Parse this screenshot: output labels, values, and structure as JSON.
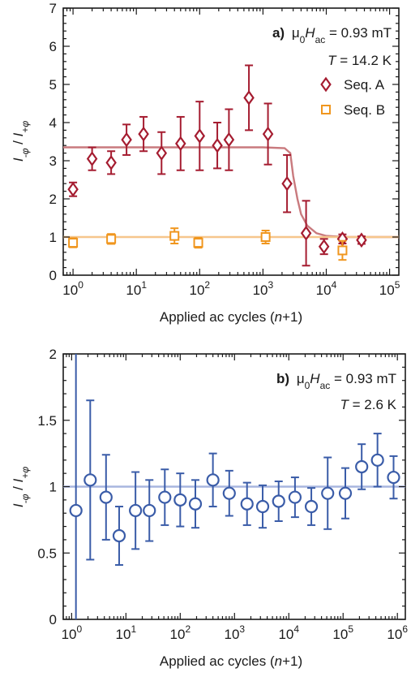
{
  "chart_data": [
    {
      "type": "scatter",
      "panel_label": "a)",
      "field_prefix": "μ",
      "field_sub0": "0",
      "field_H": "H",
      "field_sub": "ac",
      "field_value": " = 0.93 mT",
      "temp_T": "T",
      "temp_value": " = 14.2 K",
      "xlabel_prefix": "Applied ac cycles (",
      "xlabel_n": "n",
      "xlabel_suffix": "+1)",
      "ylabel_I": "I",
      "ylabel_sub_minus": "-φ",
      "ylabel_sep": " / ",
      "ylabel_sub_plus": "+φ",
      "xscale": "log",
      "xlim": [
        0.7,
        140000
      ],
      "ylim": [
        0,
        7
      ],
      "xticks": [
        1,
        10,
        100,
        1000,
        10000,
        100000
      ],
      "xtick_exponents": [
        "0",
        "1",
        "2",
        "3",
        "4",
        "5"
      ],
      "yticks": [
        0,
        1,
        2,
        3,
        4,
        5,
        6,
        7
      ],
      "ytick_labels": [
        "0",
        "1",
        "2",
        "3",
        "4",
        "5",
        "6",
        "7"
      ],
      "legend_position": "top-right",
      "series": [
        {
          "name": "Seq. A",
          "marker": "diamond",
          "color": "#a51c30",
          "points": [
            {
              "x": 1,
              "y": 2.25,
              "err": 0.18
            },
            {
              "x": 2,
              "y": 3.05,
              "err": 0.3
            },
            {
              "x": 4,
              "y": 2.95,
              "err": 0.3
            },
            {
              "x": 7,
              "y": 3.55,
              "err": 0.4
            },
            {
              "x": 13,
              "y": 3.7,
              "err": 0.45
            },
            {
              "x": 25,
              "y": 3.2,
              "err": 0.55
            },
            {
              "x": 50,
              "y": 3.45,
              "err": 0.7
            },
            {
              "x": 100,
              "y": 3.65,
              "err": 0.9
            },
            {
              "x": 190,
              "y": 3.4,
              "err": 0.6
            },
            {
              "x": 290,
              "y": 3.55,
              "err": 0.8
            },
            {
              "x": 600,
              "y": 4.65,
              "err": 0.85
            },
            {
              "x": 1200,
              "y": 3.7,
              "err": 0.8
            },
            {
              "x": 2400,
              "y": 2.4,
              "err": 0.75
            },
            {
              "x": 4800,
              "y": 1.1,
              "err": 0.85
            },
            {
              "x": 9200,
              "y": 0.75,
              "err": 0.2
            },
            {
              "x": 18000,
              "y": 0.95,
              "err": 0.12
            },
            {
              "x": 36000,
              "y": 0.92,
              "err": 0.1
            }
          ],
          "fit": {
            "color": "#c97a7e",
            "points": [
              [
                0.7,
                3.35
              ],
              [
                1000,
                3.35
              ],
              [
                2200,
                3.33
              ],
              [
                2700,
                3.2
              ],
              [
                3000,
                2.6
              ],
              [
                3500,
                2.0
              ],
              [
                4000,
                1.6
              ],
              [
                5000,
                1.3
              ],
              [
                7000,
                1.1
              ],
              [
                10000,
                1.03
              ],
              [
                20000,
                1.0
              ],
              [
                140000,
                1.0
              ]
            ]
          }
        },
        {
          "name": "Seq. B",
          "marker": "square",
          "color": "#f0961e",
          "points": [
            {
              "x": 1,
              "y": 0.85,
              "err": 0.12
            },
            {
              "x": 4,
              "y": 0.95,
              "err": 0.13
            },
            {
              "x": 40,
              "y": 1.03,
              "err": 0.2
            },
            {
              "x": 95,
              "y": 0.85,
              "err": 0.13
            },
            {
              "x": 1100,
              "y": 1.0,
              "err": 0.17
            },
            {
              "x": 18000,
              "y": 0.65,
              "err": 0.25
            }
          ],
          "fit": {
            "color": "#f6c68c",
            "points": [
              [
                0.7,
                1.0
              ],
              [
                140000,
                1.0
              ]
            ]
          }
        }
      ]
    },
    {
      "type": "scatter",
      "panel_label": "b)",
      "field_prefix": "μ",
      "field_sub0": "0",
      "field_H": "H",
      "field_sub": "ac",
      "field_value": " = 0.93 mT",
      "temp_T": "T",
      "temp_value": " = 2.6 K",
      "xlabel_prefix": "Applied ac cycles (",
      "xlabel_n": "n",
      "xlabel_suffix": "+1)",
      "ylabel_I": "I",
      "ylabel_sub_minus": "-φ",
      "ylabel_sep": " / ",
      "ylabel_sub_plus": "+φ",
      "xscale": "log",
      "xlim": [
        0.7,
        1400000
      ],
      "ylim": [
        0,
        2
      ],
      "xticks": [
        1,
        10,
        100,
        1000,
        10000,
        100000,
        1000000
      ],
      "xtick_exponents": [
        "0",
        "1",
        "2",
        "3",
        "4",
        "5",
        "6"
      ],
      "yticks": [
        0,
        0.5,
        1,
        1.5,
        2
      ],
      "ytick_labels": [
        "0",
        "0.5",
        "1",
        "1.5",
        "2"
      ],
      "series": [
        {
          "marker": "circle",
          "color": "#3a5ca8",
          "points": [
            {
              "x": 1.2,
              "y": 0.82,
              "err": 1.3
            },
            {
              "x": 2.2,
              "y": 1.05,
              "err": 0.6
            },
            {
              "x": 4.3,
              "y": 0.92,
              "err": 0.32
            },
            {
              "x": 7.5,
              "y": 0.63,
              "err": 0.22
            },
            {
              "x": 15,
              "y": 0.82,
              "err": 0.29
            },
            {
              "x": 27,
              "y": 0.82,
              "err": 0.23
            },
            {
              "x": 52,
              "y": 0.92,
              "err": 0.21
            },
            {
              "x": 100,
              "y": 0.9,
              "err": 0.2
            },
            {
              "x": 190,
              "y": 0.87,
              "err": 0.18
            },
            {
              "x": 400,
              "y": 1.05,
              "err": 0.2
            },
            {
              "x": 800,
              "y": 0.95,
              "err": 0.17
            },
            {
              "x": 1700,
              "y": 0.87,
              "err": 0.16
            },
            {
              "x": 3300,
              "y": 0.85,
              "err": 0.16
            },
            {
              "x": 6500,
              "y": 0.89,
              "err": 0.15
            },
            {
              "x": 13000,
              "y": 0.92,
              "err": 0.15
            },
            {
              "x": 26000,
              "y": 0.85,
              "err": 0.14
            },
            {
              "x": 52000,
              "y": 0.95,
              "err": 0.27
            },
            {
              "x": 110000,
              "y": 0.95,
              "err": 0.19
            },
            {
              "x": 220000,
              "y": 1.15,
              "err": 0.17
            },
            {
              "x": 430000,
              "y": 1.2,
              "err": 0.2
            },
            {
              "x": 850000,
              "y": 1.07,
              "err": 0.16
            }
          ],
          "fit": {
            "color": "#a8b6df",
            "points": [
              [
                0.7,
                1.0
              ],
              [
                1400000,
                1.0
              ]
            ]
          }
        }
      ]
    }
  ]
}
